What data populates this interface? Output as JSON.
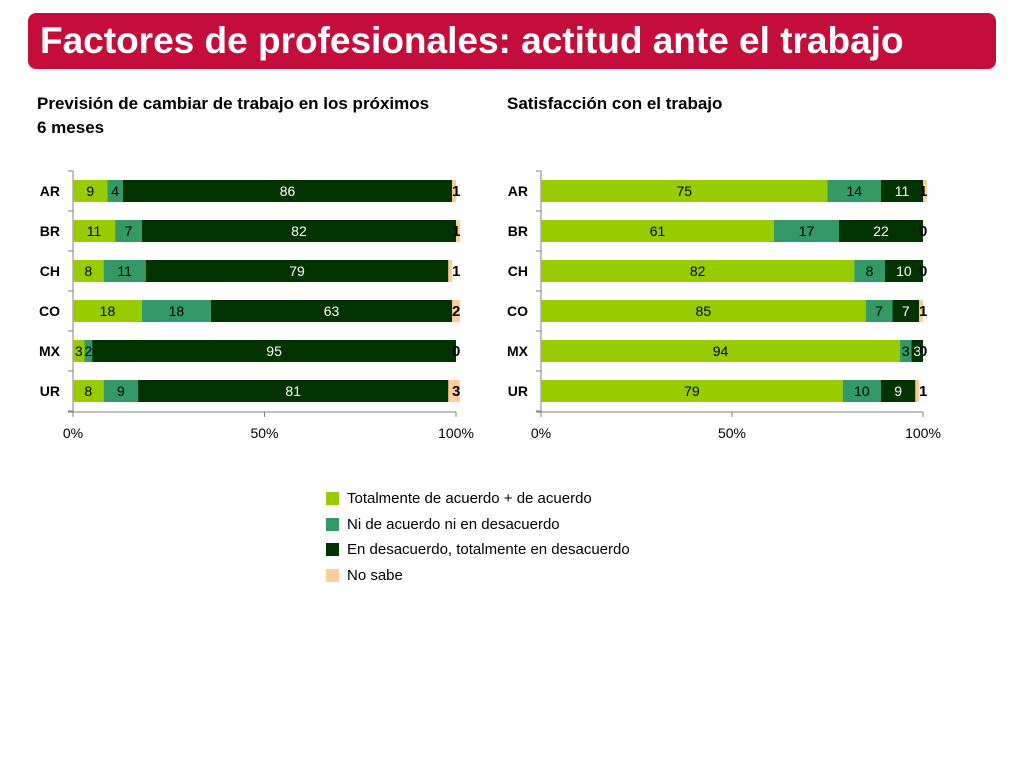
{
  "page": {
    "title": "Factores de profesionales: actitud ante el trabajo"
  },
  "colors": {
    "title_bg": "#c50d3c",
    "series": [
      "#99cc00",
      "#339966",
      "#003300",
      "#ffcc99"
    ]
  },
  "legend": [
    "Totalmente de acuerdo + de acuerdo",
    "Ni de acuerdo ni en desacuerdo",
    "En desacuerdo, totalmente en desacuerdo",
    "No sabe"
  ],
  "chart_data": [
    {
      "type": "bar",
      "orientation": "horizontal",
      "stacked": "100%",
      "title": "Previsión de cambiar de trabajo en los próximos 6 meses",
      "categories": [
        "AR",
        "BR",
        "CH",
        "CO",
        "MX",
        "UR"
      ],
      "series": [
        {
          "name": "Totalmente de acuerdo + de acuerdo",
          "values": [
            9,
            11,
            8,
            18,
            3,
            8
          ]
        },
        {
          "name": "Ni de acuerdo ni en desacuerdo",
          "values": [
            4,
            7,
            11,
            18,
            2,
            9
          ]
        },
        {
          "name": "En desacuerdo, totalmente en desacuerdo",
          "values": [
            86,
            82,
            79,
            63,
            95,
            81
          ]
        },
        {
          "name": "No sabe",
          "values": [
            1,
            1,
            1,
            2,
            0,
            3
          ]
        }
      ],
      "xlim": [
        0,
        100
      ],
      "xticks": [
        "0%",
        "50%",
        "100%"
      ]
    },
    {
      "type": "bar",
      "orientation": "horizontal",
      "stacked": "100%",
      "title": "Satisfacción con el trabajo",
      "categories": [
        "AR",
        "BR",
        "CH",
        "CO",
        "MX",
        "UR"
      ],
      "series": [
        {
          "name": "Totalmente de acuerdo + de acuerdo",
          "values": [
            75,
            61,
            82,
            85,
            94,
            79
          ]
        },
        {
          "name": "Ni de acuerdo ni en desacuerdo",
          "values": [
            14,
            17,
            8,
            7,
            3,
            10
          ]
        },
        {
          "name": "En desacuerdo, totalmente en desacuerdo",
          "values": [
            11,
            22,
            10,
            7,
            3,
            9
          ]
        },
        {
          "name": "No sabe",
          "values": [
            1,
            0,
            0,
            1,
            0,
            1
          ]
        }
      ],
      "xlim": [
        0,
        100
      ],
      "xticks": [
        "0%",
        "50%",
        "100%"
      ]
    }
  ]
}
